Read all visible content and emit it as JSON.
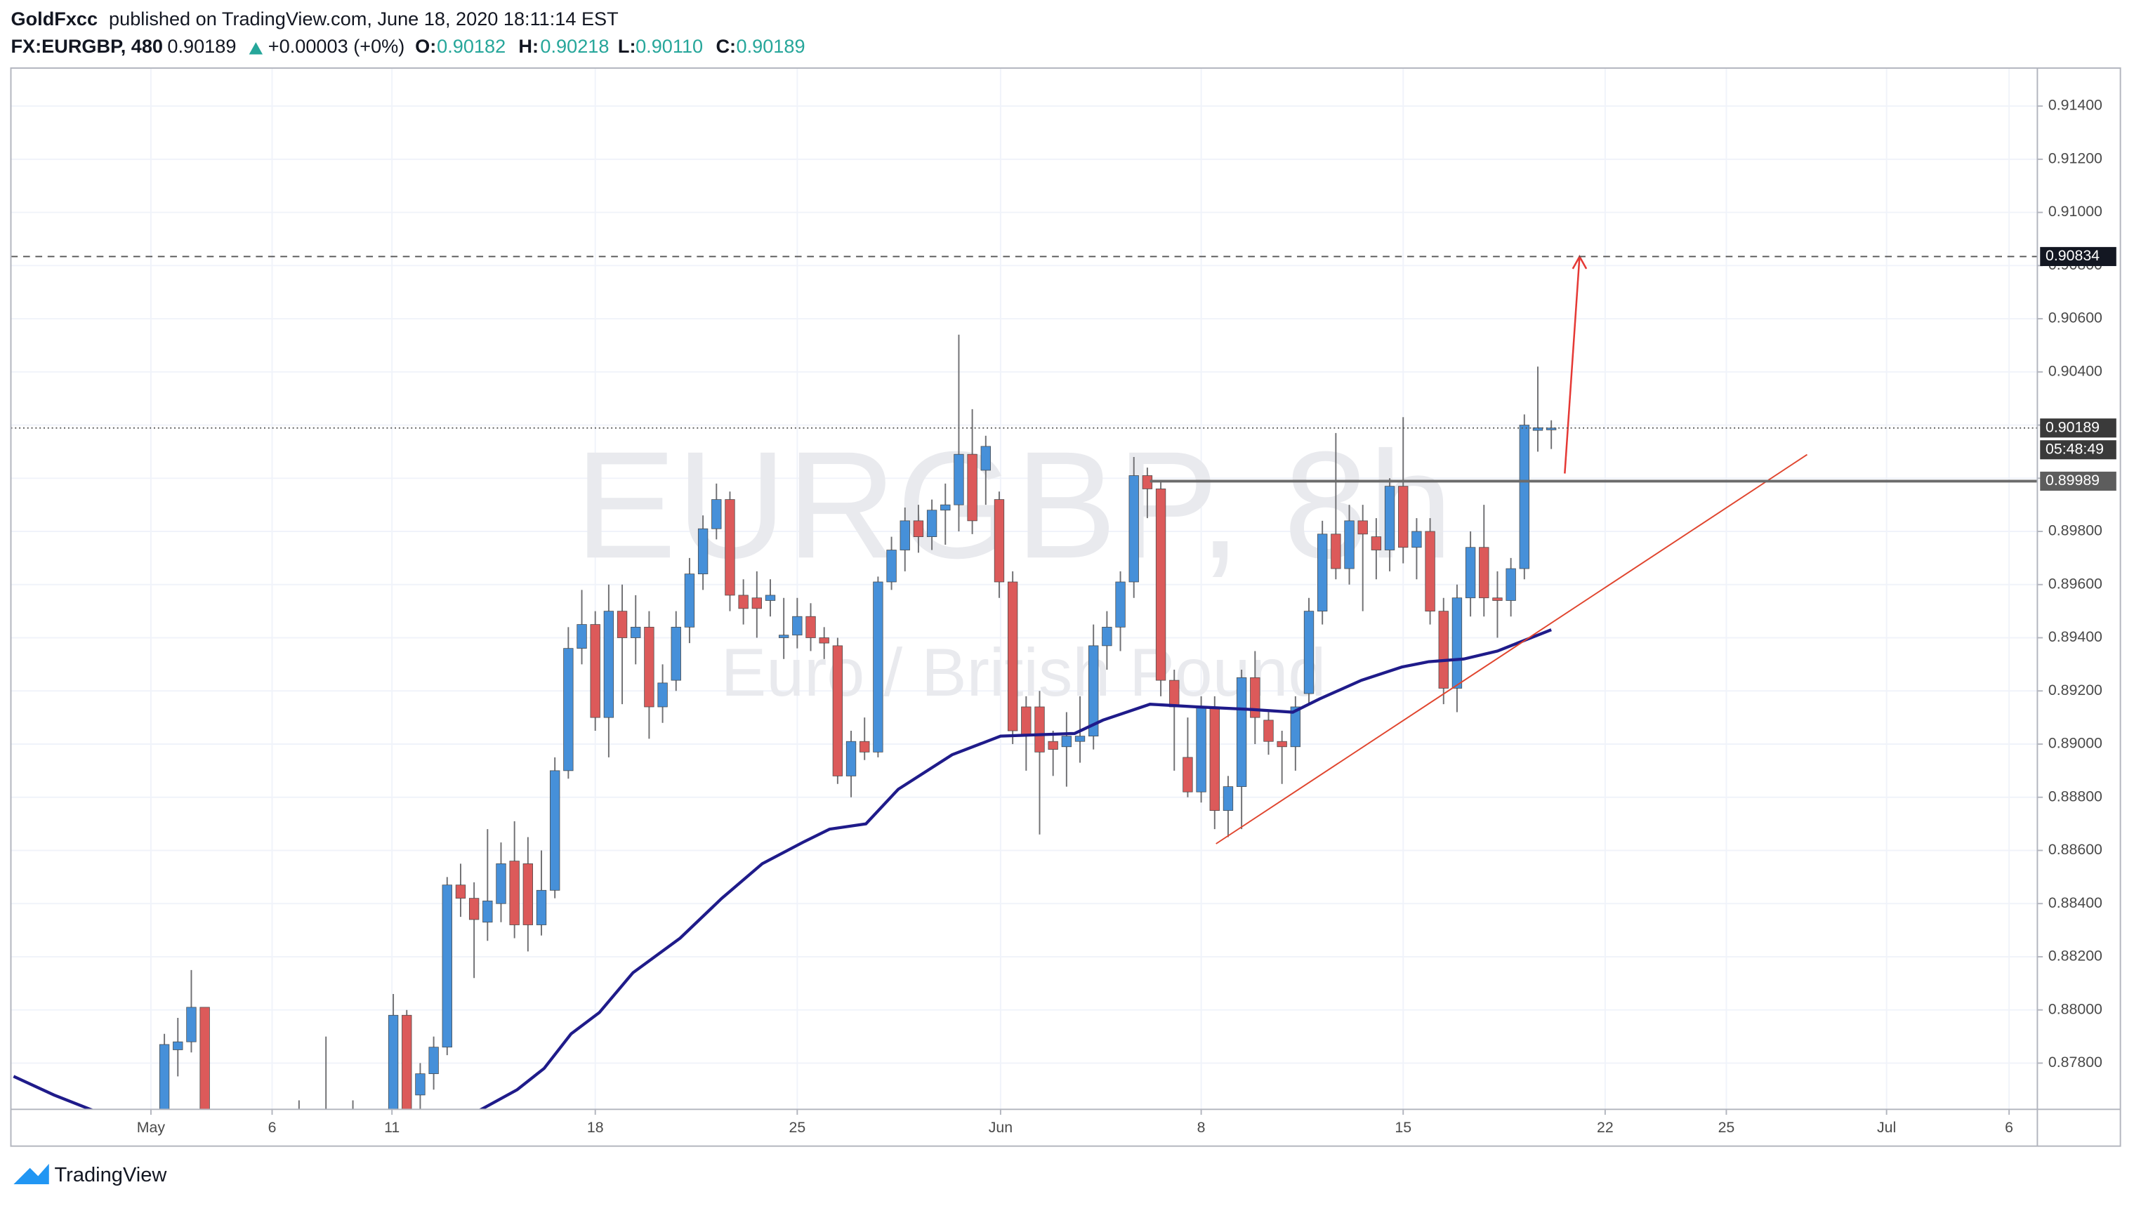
{
  "header": {
    "author": "GoldFxcc",
    "published": "published on TradingView.com, June 18, 2020 18:11:14 EST",
    "symbol": "FX:EURGBP, 480",
    "price": "0.90189",
    "change": "+0.00003 (+0%)",
    "o_label": "O:",
    "o": "0.90182",
    "h_label": "H:",
    "h": "0.90218",
    "l_label": "L:",
    "l": "0.90110",
    "c_label": "C:",
    "c": "0.90189"
  },
  "footer": {
    "brand": "TradingView"
  },
  "chart_data": {
    "type": "candlestick",
    "watermark": "EURGBP, 8h",
    "watermark_sub": "Euro / British Pound",
    "up_color": "#4690d9",
    "down_color": "#dc5a5a",
    "wick_color": "#6f6f72",
    "grid": true,
    "xlim": [
      -11.4,
      139.1
    ],
    "xticks": [
      {
        "value": -1,
        "label": "May"
      },
      {
        "value": 8,
        "label": "6"
      },
      {
        "value": 16.9,
        "label": "11"
      },
      {
        "value": 32,
        "label": "18"
      },
      {
        "value": 47,
        "label": "25"
      },
      {
        "value": 62.1,
        "label": "Jun"
      },
      {
        "value": 77,
        "label": "8"
      },
      {
        "value": 92,
        "label": "15"
      },
      {
        "value": 107,
        "label": "22"
      },
      {
        "value": 116,
        "label": "25"
      },
      {
        "value": 127.9,
        "label": "Jul"
      },
      {
        "value": 137,
        "label": "6"
      }
    ],
    "ylim": [
      0.87626,
      0.91543
    ],
    "yticks": [
      {
        "value": 0.878,
        "label": "0.87800"
      },
      {
        "value": 0.88,
        "label": "0.88000"
      },
      {
        "value": 0.882,
        "label": "0.88200"
      },
      {
        "value": 0.884,
        "label": "0.88400"
      },
      {
        "value": 0.886,
        "label": "0.88600"
      },
      {
        "value": 0.888,
        "label": "0.88800"
      },
      {
        "value": 0.89,
        "label": "0.89000"
      },
      {
        "value": 0.892,
        "label": "0.89200"
      },
      {
        "value": 0.894,
        "label": "0.89400"
      },
      {
        "value": 0.896,
        "label": "0.89600"
      },
      {
        "value": 0.898,
        "label": "0.89800"
      },
      {
        "value": 0.9,
        "label": "0.90000"
      },
      {
        "value": 0.902,
        "label": "0.90200"
      },
      {
        "value": 0.904,
        "label": "0.90400"
      },
      {
        "value": 0.906,
        "label": "0.90600"
      },
      {
        "value": 0.908,
        "label": "0.90800"
      },
      {
        "value": 0.91,
        "label": "0.91000"
      },
      {
        "value": 0.912,
        "label": "0.91200"
      },
      {
        "value": 0.914,
        "label": "0.91400"
      }
    ],
    "open": [
      0.8755,
      0.8785,
      0.8788,
      0.8801,
      0.8745,
      0.874,
      0.8735,
      0.8742,
      0.8738,
      0.875,
      0.8745,
      0.8755,
      0.8748,
      0.8752,
      0.875,
      0.8755,
      0.8758,
      0.8755,
      0.8798,
      0.8768,
      0.8776,
      0.8786,
      0.8847,
      0.8842,
      0.8833,
      0.884,
      0.8856,
      0.8855,
      0.8832,
      0.8845,
      0.889,
      0.8936,
      0.8945,
      0.891,
      0.895,
      0.894,
      0.8944,
      0.8914,
      0.8924,
      0.8944,
      0.8964,
      0.8981,
      0.8992,
      0.8956,
      0.8955,
      0.8954,
      0.894,
      0.8941,
      0.8948,
      0.894,
      0.8937,
      0.8888,
      0.8901,
      0.8897,
      0.8961,
      0.8973,
      0.8984,
      0.8978,
      0.8988,
      0.899,
      0.9009,
      0.9003,
      0.8992,
      0.8961,
      0.8914,
      0.8914,
      0.8901,
      0.8899,
      0.8901,
      0.8903,
      0.8937,
      0.8944,
      0.8961,
      0.9001,
      0.8996,
      0.8924,
      0.8895,
      0.8882,
      0.8914,
      0.8875,
      0.8884,
      0.8925,
      0.8909,
      0.8901,
      0.8899,
      0.8919,
      0.895,
      0.8979,
      0.8966,
      0.8984,
      0.8978,
      0.8973,
      0.8997,
      0.8974,
      0.898,
      0.895,
      0.8921,
      0.8955,
      0.8974,
      0.8955,
      0.8954,
      0.8966,
      0.9018,
      0.90182
    ],
    "high": [
      0.8791,
      0.8797,
      0.8815,
      0.8801,
      0.8752,
      0.8748,
      0.8745,
      0.875,
      0.8758,
      0.8762,
      0.8766,
      0.876,
      0.879,
      0.876,
      0.8766,
      0.8762,
      0.8762,
      0.8806,
      0.88,
      0.878,
      0.879,
      0.885,
      0.8855,
      0.8848,
      0.8868,
      0.8863,
      0.8871,
      0.8865,
      0.886,
      0.8895,
      0.8944,
      0.8958,
      0.895,
      0.896,
      0.896,
      0.8956,
      0.895,
      0.893,
      0.895,
      0.897,
      0.8986,
      0.8998,
      0.8995,
      0.8962,
      0.8965,
      0.8962,
      0.8955,
      0.8955,
      0.8953,
      0.8944,
      0.894,
      0.8905,
      0.891,
      0.8963,
      0.8978,
      0.8989,
      0.899,
      0.8992,
      0.8998,
      0.9054,
      0.9026,
      0.9016,
      0.8995,
      0.8965,
      0.8918,
      0.892,
      0.8905,
      0.8912,
      0.8918,
      0.8945,
      0.895,
      0.8965,
      0.9008,
      0.9004,
      0.8999,
      0.8928,
      0.891,
      0.8918,
      0.8918,
      0.8888,
      0.8928,
      0.8935,
      0.8912,
      0.8905,
      0.8918,
      0.8955,
      0.8984,
      0.9017,
      0.899,
      0.899,
      0.8985,
      0.9,
      0.9023,
      0.8985,
      0.8985,
      0.8955,
      0.896,
      0.898,
      0.899,
      0.8965,
      0.897,
      0.9024,
      0.9042,
      0.90218
    ],
    "low": [
      0.875,
      0.8775,
      0.8784,
      0.8745,
      0.873,
      0.8728,
      0.8725,
      0.873,
      0.8732,
      0.874,
      0.8738,
      0.8742,
      0.874,
      0.8745,
      0.8742,
      0.8748,
      0.8745,
      0.875,
      0.875,
      0.876,
      0.877,
      0.8783,
      0.8835,
      0.8812,
      0.8826,
      0.8833,
      0.8827,
      0.8822,
      0.8828,
      0.8842,
      0.8887,
      0.893,
      0.8905,
      0.8895,
      0.8915,
      0.893,
      0.8902,
      0.8908,
      0.892,
      0.8938,
      0.8958,
      0.8977,
      0.895,
      0.8945,
      0.894,
      0.8948,
      0.8932,
      0.8936,
      0.8935,
      0.8932,
      0.8885,
      0.888,
      0.8894,
      0.8895,
      0.8958,
      0.8965,
      0.8972,
      0.8973,
      0.8975,
      0.898,
      0.8979,
      0.899,
      0.8955,
      0.89,
      0.889,
      0.8866,
      0.8888,
      0.8884,
      0.8893,
      0.8898,
      0.8928,
      0.8935,
      0.8955,
      0.8985,
      0.8918,
      0.889,
      0.888,
      0.8878,
      0.8868,
      0.8865,
      0.8868,
      0.89,
      0.8896,
      0.8885,
      0.889,
      0.8915,
      0.8945,
      0.8962,
      0.896,
      0.895,
      0.8962,
      0.8965,
      0.8968,
      0.8962,
      0.8945,
      0.8915,
      0.8912,
      0.8948,
      0.8948,
      0.894,
      0.8948,
      0.8962,
      0.901,
      0.9011
    ],
    "close": [
      0.8787,
      0.8788,
      0.8801,
      0.8745,
      0.874,
      0.8735,
      0.8742,
      0.8738,
      0.875,
      0.8745,
      0.8755,
      0.8748,
      0.8752,
      0.875,
      0.8755,
      0.8758,
      0.8752,
      0.8798,
      0.8755,
      0.8776,
      0.8786,
      0.8847,
      0.8842,
      0.8834,
      0.8841,
      0.8855,
      0.8832,
      0.8832,
      0.8845,
      0.889,
      0.8936,
      0.8945,
      0.891,
      0.895,
      0.894,
      0.8944,
      0.8914,
      0.8923,
      0.8944,
      0.8964,
      0.8981,
      0.8992,
      0.8956,
      0.8951,
      0.8951,
      0.8956,
      0.8941,
      0.8948,
      0.894,
      0.8938,
      0.8888,
      0.8901,
      0.8897,
      0.8961,
      0.8973,
      0.8984,
      0.8978,
      0.8988,
      0.899,
      0.9009,
      0.8984,
      0.9012,
      0.8961,
      0.8905,
      0.8903,
      0.8897,
      0.8898,
      0.8903,
      0.8903,
      0.8937,
      0.8944,
      0.8961,
      0.9001,
      0.8996,
      0.8924,
      0.8914,
      0.8882,
      0.8914,
      0.8875,
      0.8884,
      0.8925,
      0.891,
      0.8901,
      0.8899,
      0.8914,
      0.895,
      0.8979,
      0.8966,
      0.8984,
      0.8979,
      0.8973,
      0.8997,
      0.8974,
      0.898,
      0.895,
      0.8921,
      0.8955,
      0.8974,
      0.8955,
      0.8954,
      0.8966,
      0.902,
      0.9019,
      0.90189
    ],
    "ma": {
      "color": "#1f1b8a",
      "x": [
        -11.2,
        -8.2,
        -5.2,
        -2.1,
        22.6,
        26.2,
        28.2,
        30.2,
        32.3,
        34.8,
        38.3,
        41.4,
        44.4,
        47.4,
        49.4,
        52.1,
        54.5,
        58.5,
        62.1,
        67.6,
        69.7,
        73.2,
        76.7,
        80.8,
        83.8,
        85.8,
        88.9,
        91.9,
        93.9,
        96.5,
        99,
        103
      ],
      "values": [
        0.8775,
        0.8768,
        0.8762,
        0.8755,
        0.876,
        0.877,
        0.8778,
        0.8791,
        0.8799,
        0.8814,
        0.8827,
        0.8842,
        0.8855,
        0.8863,
        0.8868,
        0.887,
        0.8883,
        0.8896,
        0.8903,
        0.8904,
        0.8909,
        0.8915,
        0.8914,
        0.8913,
        0.8912,
        0.8917,
        0.8924,
        0.8929,
        0.8931,
        0.8932,
        0.8935,
        0.8943
      ]
    },
    "trendline": {
      "color": "#e0452e",
      "x": [
        78.1,
        122
      ],
      "values": [
        0.88625,
        0.90089
      ]
    },
    "arrow": {
      "color": "#e53935",
      "x": [
        104,
        105.1
      ],
      "values": [
        0.90018,
        0.90834
      ]
    },
    "target_level": 0.90834,
    "last_price": 0.90189,
    "countdown": "05:48:49",
    "resistance": {
      "value": 0.89989,
      "from": 73.2
    }
  }
}
